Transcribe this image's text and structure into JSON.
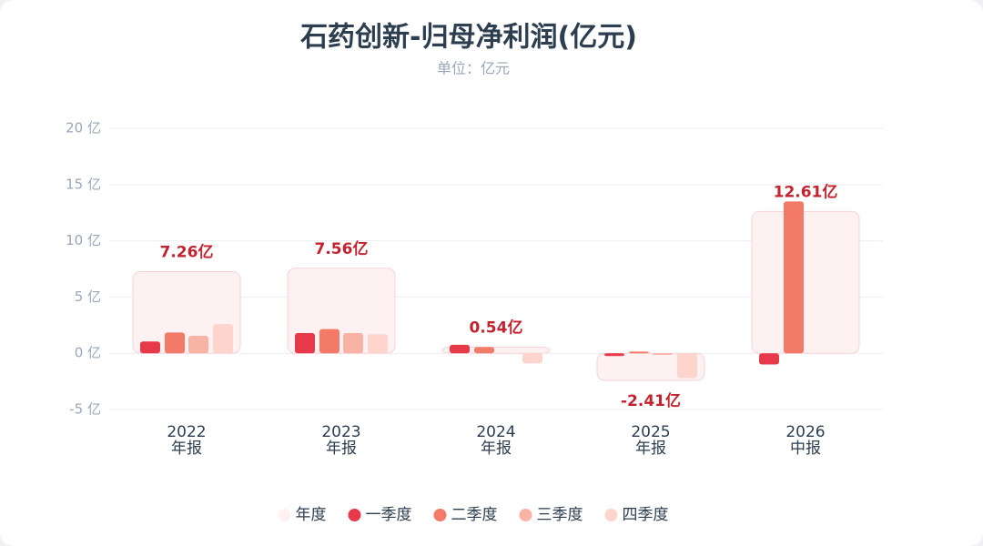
{
  "chart_data": {
    "type": "bar",
    "title": "石药创新-归母净利润(亿元)",
    "subtitle": "单位：亿元",
    "categories": [
      "2022",
      "2023",
      "2024",
      "2025",
      "2026"
    ],
    "periods": [
      "年报",
      "年报",
      "年报",
      "年报",
      "中报"
    ],
    "ylim": [
      -5,
      20
    ],
    "yticks": [
      {
        "value": -5,
        "label": "-5 亿"
      },
      {
        "value": 0,
        "label": "0 亿"
      },
      {
        "value": 5,
        "label": "5 亿"
      },
      {
        "value": 10,
        "label": "10 亿"
      },
      {
        "value": 15,
        "label": "15 亿"
      },
      {
        "value": 20,
        "label": "20 亿"
      }
    ],
    "grid": true,
    "legend": "bottom",
    "series": [
      {
        "name": "年度",
        "color": "#fdf1f2",
        "values": [
          7.26,
          7.56,
          0.54,
          -2.41,
          12.61
        ],
        "value_labels": [
          "7.26亿",
          "7.56亿",
          "0.54亿",
          "-2.41亿",
          "12.61亿"
        ]
      },
      {
        "name": "一季度",
        "color": "#e63a4b",
        "values": [
          1.05,
          1.8,
          0.75,
          -0.25,
          -1.0
        ]
      },
      {
        "name": "二季度",
        "color": "#f27a66",
        "values": [
          1.85,
          2.15,
          0.55,
          0.15,
          13.5
        ]
      },
      {
        "name": "三季度",
        "color": "#f8b3a5",
        "values": [
          1.55,
          1.8,
          0,
          -0.15,
          null
        ]
      },
      {
        "name": "四季度",
        "color": "#fdd5cd",
        "values": [
          2.6,
          1.7,
          -0.9,
          -2.2,
          null
        ]
      }
    ]
  }
}
